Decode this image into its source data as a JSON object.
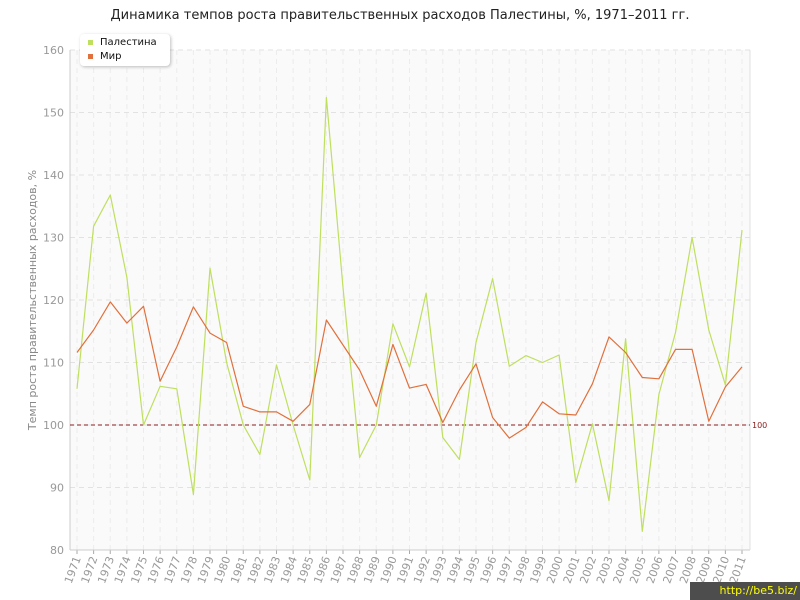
{
  "chart_data": {
    "type": "line",
    "title": "Динамика темпов роста правительственных расходов Палестины, %, 1971–2011 гг.",
    "ylabel": "Темп роста правительственных расходов, %",
    "xlabel": "",
    "ylim": [
      80,
      160
    ],
    "yticks": [
      80,
      90,
      100,
      110,
      120,
      130,
      140,
      150,
      160
    ],
    "grid": true,
    "legend_position": "top-left",
    "categories": [
      "1971",
      "1972",
      "1973",
      "1974",
      "1975",
      "1976",
      "1977",
      "1978",
      "1979",
      "1980",
      "1981",
      "1982",
      "1983",
      "1984",
      "1985",
      "1986",
      "1987",
      "1988",
      "1989",
      "1990",
      "1991",
      "1992",
      "1993",
      "1994",
      "1995",
      "1996",
      "1997",
      "1998",
      "1999",
      "2000",
      "2001",
      "2002",
      "2003",
      "2004",
      "2005",
      "2006",
      "2007",
      "2008",
      "2009",
      "2010",
      "2011"
    ],
    "series": [
      {
        "name": "Палестина",
        "color": "#bfdf5f",
        "values": [
          105.8,
          131.8,
          136.8,
          123.6,
          100.0,
          106.2,
          105.8,
          88.9,
          125.1,
          110.0,
          100.0,
          95.3,
          109.6,
          100.0,
          91.2,
          152.4,
          122.0,
          94.8,
          100.0,
          116.2,
          109.3,
          121.1,
          98.0,
          94.5,
          113.2,
          123.4,
          109.4,
          111.1,
          110.0,
          111.2,
          90.8,
          100.2,
          87.9,
          113.8,
          83.0,
          104.9,
          114.8,
          130.0,
          115.2,
          106.4,
          131.2
        ]
      },
      {
        "name": "Мир",
        "color": "#e0703c",
        "values": [
          111.6,
          115.2,
          119.7,
          116.3,
          119.0,
          107.0,
          112.5,
          118.9,
          114.7,
          113.2,
          103.0,
          102.1,
          102.1,
          100.6,
          103.3,
          116.8,
          112.8,
          108.8,
          103.0,
          112.9,
          105.9,
          106.5,
          100.4,
          105.6,
          109.8,
          101.2,
          97.9,
          99.6,
          103.7,
          101.8,
          101.6,
          106.6,
          114.1,
          111.6,
          107.6,
          107.4,
          112.1,
          112.1,
          100.6,
          106.1,
          109.3
        ]
      }
    ],
    "reference_line": {
      "value": 100,
      "label": "100",
      "color": "#8b1a1a"
    }
  },
  "watermark": "http://be5.biz/"
}
